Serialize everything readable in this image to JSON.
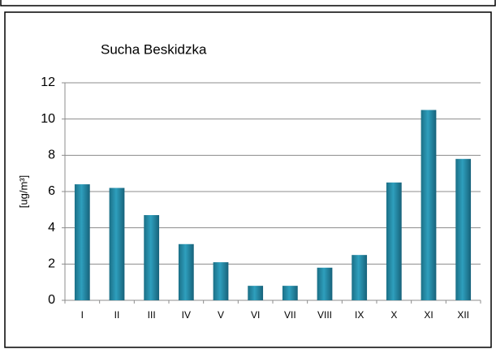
{
  "chart_data": {
    "type": "bar",
    "title": "Sucha Beskidzka",
    "y_label": "[ug/m³]",
    "categories": [
      "I",
      "II",
      "III",
      "IV",
      "V",
      "VI",
      "VII",
      "VIII",
      "IX",
      "X",
      "XI",
      "XII"
    ],
    "values": [
      6.4,
      6.2,
      4.7,
      3.1,
      2.1,
      0.8,
      0.8,
      1.8,
      2.5,
      6.5,
      10.5,
      7.8
    ],
    "color": "#2e9fbd",
    "ylim": [
      0,
      12
    ],
    "yticks": [
      0,
      2,
      4,
      6,
      8,
      10,
      12
    ],
    "grid": true
  }
}
